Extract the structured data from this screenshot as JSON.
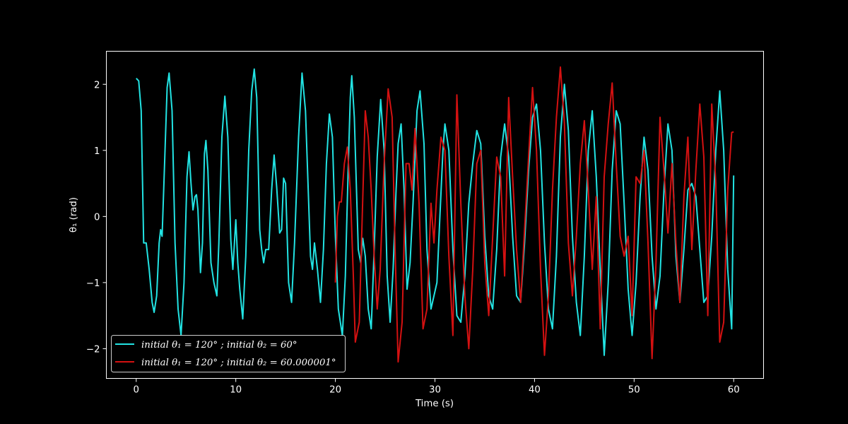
{
  "chart_data": {
    "type": "line",
    "title": "",
    "xlabel": "Time (s)",
    "ylabel": "θ₁ (rad)",
    "xlim": [
      -3,
      63
    ],
    "ylim": [
      -2.45,
      2.5
    ],
    "xticks": [
      0,
      10,
      20,
      30,
      40,
      50,
      60
    ],
    "yticks": [
      -2,
      -1,
      0,
      1,
      2
    ],
    "ytick_labels": [
      "−2",
      "−1",
      "0",
      "1",
      "2"
    ],
    "grid": false,
    "legend_position": "lower-left",
    "series": [
      {
        "name": "initial θ₁ = 120° ; initial θ₂ = 60°",
        "color": "#22e3e3",
        "points": [
          [
            0,
            2.09
          ],
          [
            0.25,
            2.05
          ],
          [
            0.5,
            1.6
          ],
          [
            0.75,
            -0.4
          ],
          [
            1.0,
            -0.4
          ],
          [
            1.3,
            -0.8
          ],
          [
            1.6,
            -1.3
          ],
          [
            1.8,
            -1.45
          ],
          [
            2.05,
            -1.2
          ],
          [
            2.3,
            -0.4
          ],
          [
            2.45,
            -0.2
          ],
          [
            2.6,
            -0.3
          ],
          [
            2.85,
            0.8
          ],
          [
            3.1,
            1.95
          ],
          [
            3.3,
            2.17
          ],
          [
            3.6,
            1.6
          ],
          [
            3.9,
            -0.4
          ],
          [
            4.2,
            -1.4
          ],
          [
            4.5,
            -1.8
          ],
          [
            4.8,
            -1.0
          ],
          [
            5.1,
            0.6
          ],
          [
            5.3,
            0.98
          ],
          [
            5.5,
            0.5
          ],
          [
            5.7,
            0.1
          ],
          [
            5.9,
            0.3
          ],
          [
            6.05,
            0.33
          ],
          [
            6.2,
            0.1
          ],
          [
            6.45,
            -0.85
          ],
          [
            6.65,
            -0.4
          ],
          [
            6.85,
            0.95
          ],
          [
            7.0,
            1.15
          ],
          [
            7.2,
            0.7
          ],
          [
            7.5,
            -0.7
          ],
          [
            7.8,
            -1.0
          ],
          [
            8.1,
            -1.2
          ],
          [
            8.3,
            -0.4
          ],
          [
            8.6,
            1.2
          ],
          [
            8.9,
            1.82
          ],
          [
            9.2,
            1.2
          ],
          [
            9.5,
            -0.35
          ],
          [
            9.7,
            -0.8
          ],
          [
            9.9,
            -0.3
          ],
          [
            10.0,
            -0.05
          ],
          [
            10.2,
            -0.7
          ],
          [
            10.4,
            -1.1
          ],
          [
            10.7,
            -1.55
          ],
          [
            11.0,
            -0.6
          ],
          [
            11.3,
            1.0
          ],
          [
            11.6,
            1.9
          ],
          [
            11.85,
            2.23
          ],
          [
            12.1,
            1.8
          ],
          [
            12.4,
            -0.2
          ],
          [
            12.6,
            -0.5
          ],
          [
            12.8,
            -0.7
          ],
          [
            13.0,
            -0.5
          ],
          [
            13.3,
            -0.5
          ],
          [
            13.6,
            0.4
          ],
          [
            13.85,
            0.93
          ],
          [
            14.1,
            0.45
          ],
          [
            14.4,
            -0.25
          ],
          [
            14.6,
            -0.2
          ],
          [
            14.8,
            0.58
          ],
          [
            15.0,
            0.5
          ],
          [
            15.3,
            -1.0
          ],
          [
            15.6,
            -1.3
          ],
          [
            15.9,
            -0.4
          ],
          [
            16.3,
            1.2
          ],
          [
            16.65,
            2.17
          ],
          [
            17.0,
            1.6
          ],
          [
            17.5,
            -0.6
          ],
          [
            17.7,
            -0.8
          ],
          [
            17.9,
            -0.4
          ],
          [
            18.2,
            -0.8
          ],
          [
            18.5,
            -1.3
          ],
          [
            18.8,
            -0.5
          ],
          [
            19.1,
            0.8
          ],
          [
            19.4,
            1.55
          ],
          [
            19.7,
            1.2
          ],
          [
            20.0,
            -0.3
          ],
          [
            20.3,
            -1.4
          ],
          [
            20.7,
            -1.8
          ],
          [
            21.0,
            -0.9
          ],
          [
            21.3,
            0.8
          ],
          [
            21.5,
            1.8
          ],
          [
            21.65,
            2.13
          ],
          [
            21.9,
            1.5
          ],
          [
            22.3,
            -0.5
          ],
          [
            22.55,
            -0.7
          ],
          [
            22.75,
            -0.33
          ],
          [
            23.0,
            -0.6
          ],
          [
            23.3,
            -1.4
          ],
          [
            23.6,
            -1.7
          ],
          [
            23.9,
            -0.5
          ],
          [
            24.2,
            0.9
          ],
          [
            24.55,
            1.77
          ],
          [
            24.9,
            1.0
          ],
          [
            25.2,
            -0.9
          ],
          [
            25.5,
            -1.6
          ],
          [
            25.8,
            -0.8
          ],
          [
            26.1,
            0.4
          ],
          [
            26.3,
            1.1
          ],
          [
            26.6,
            1.4
          ],
          [
            26.9,
            0.4
          ],
          [
            27.2,
            -1.1
          ],
          [
            27.5,
            -0.7
          ],
          [
            27.8,
            0.2
          ],
          [
            28.2,
            1.6
          ],
          [
            28.5,
            1.9
          ],
          [
            28.9,
            1.1
          ],
          [
            29.2,
            -0.5
          ],
          [
            29.6,
            -1.4
          ],
          [
            29.9,
            -1.2
          ],
          [
            30.2,
            -1.0
          ],
          [
            30.5,
            0.0
          ],
          [
            30.8,
            1.0
          ],
          [
            31.0,
            1.4
          ],
          [
            31.4,
            1.0
          ],
          [
            31.8,
            -0.5
          ],
          [
            32.2,
            -1.5
          ],
          [
            32.6,
            -1.6
          ],
          [
            33.0,
            -0.9
          ],
          [
            33.4,
            0.2
          ],
          [
            33.8,
            0.8
          ],
          [
            34.2,
            1.3
          ],
          [
            34.6,
            1.1
          ],
          [
            35.0,
            -0.3
          ],
          [
            35.4,
            -1.2
          ],
          [
            35.8,
            -1.4
          ],
          [
            36.2,
            -0.5
          ],
          [
            36.6,
            0.9
          ],
          [
            37.0,
            1.4
          ],
          [
            37.4,
            0.9
          ],
          [
            37.8,
            -0.3
          ],
          [
            38.2,
            -1.2
          ],
          [
            38.6,
            -1.3
          ],
          [
            39.0,
            -0.4
          ],
          [
            39.4,
            0.7
          ],
          [
            39.8,
            1.5
          ],
          [
            40.2,
            1.7
          ],
          [
            40.6,
            1.0
          ],
          [
            41.0,
            -0.4
          ],
          [
            41.4,
            -1.4
          ],
          [
            41.8,
            -1.7
          ],
          [
            42.2,
            -0.6
          ],
          [
            42.6,
            1.2
          ],
          [
            43.0,
            2.0
          ],
          [
            43.4,
            1.3
          ],
          [
            43.8,
            -0.3
          ],
          [
            44.2,
            -1.3
          ],
          [
            44.6,
            -1.8
          ],
          [
            45.0,
            -0.6
          ],
          [
            45.4,
            1.0
          ],
          [
            45.8,
            1.6
          ],
          [
            46.2,
            0.6
          ],
          [
            46.6,
            -0.8
          ],
          [
            47.0,
            -2.1
          ],
          [
            47.4,
            -1.0
          ],
          [
            47.8,
            0.7
          ],
          [
            48.2,
            1.6
          ],
          [
            48.6,
            1.4
          ],
          [
            49.0,
            0.2
          ],
          [
            49.4,
            -1.1
          ],
          [
            49.8,
            -1.8
          ],
          [
            50.2,
            -1.0
          ],
          [
            50.6,
            0.3
          ],
          [
            51.0,
            1.2
          ],
          [
            51.4,
            0.7
          ],
          [
            51.8,
            -0.6
          ],
          [
            52.2,
            -1.4
          ],
          [
            52.6,
            -0.9
          ],
          [
            53.0,
            0.4
          ],
          [
            53.4,
            1.4
          ],
          [
            53.8,
            1.0
          ],
          [
            54.2,
            -0.6
          ],
          [
            54.6,
            -1.3
          ],
          [
            55.0,
            -0.5
          ],
          [
            55.4,
            0.4
          ],
          [
            55.8,
            0.5
          ],
          [
            56.2,
            0.3
          ],
          [
            56.6,
            -0.5
          ],
          [
            57.0,
            -1.3
          ],
          [
            57.4,
            -1.2
          ],
          [
            57.8,
            -0.3
          ],
          [
            58.2,
            1.0
          ],
          [
            58.6,
            1.9
          ],
          [
            59.0,
            1.0
          ],
          [
            59.4,
            -0.8
          ],
          [
            59.8,
            -1.7
          ],
          [
            60.0,
            0.62
          ]
        ]
      },
      {
        "name": "initial θ₁ = 120° ; initial θ₂ = 60.000001°",
        "color": "#d41111",
        "points": [
          [
            20.0,
            -1.0
          ],
          [
            20.2,
            0.0
          ],
          [
            20.4,
            0.22
          ],
          [
            20.6,
            0.22
          ],
          [
            20.9,
            0.8
          ],
          [
            21.2,
            1.05
          ],
          [
            21.5,
            0.4
          ],
          [
            21.8,
            -0.9
          ],
          [
            22.0,
            -1.9
          ],
          [
            22.4,
            -1.6
          ],
          [
            22.7,
            0.0
          ],
          [
            23.0,
            1.6
          ],
          [
            23.3,
            1.2
          ],
          [
            23.6,
            0.4
          ],
          [
            23.9,
            -0.6
          ],
          [
            24.2,
            -1.4
          ],
          [
            24.5,
            -0.8
          ],
          [
            24.9,
            0.8
          ],
          [
            25.3,
            1.93
          ],
          [
            25.7,
            1.5
          ],
          [
            26.0,
            -0.5
          ],
          [
            26.3,
            -2.2
          ],
          [
            26.7,
            -1.6
          ],
          [
            27.1,
            0.8
          ],
          [
            27.4,
            0.8
          ],
          [
            27.7,
            0.4
          ],
          [
            28.0,
            1.33
          ],
          [
            28.4,
            0.2
          ],
          [
            28.8,
            -1.7
          ],
          [
            29.2,
            -1.4
          ],
          [
            29.6,
            0.2
          ],
          [
            29.9,
            -0.4
          ],
          [
            30.2,
            0.4
          ],
          [
            30.6,
            1.2
          ],
          [
            31.0,
            1.0
          ],
          [
            31.4,
            -0.6
          ],
          [
            31.8,
            -1.8
          ],
          [
            32.2,
            1.84
          ],
          [
            32.6,
            0.2
          ],
          [
            33.0,
            -1.2
          ],
          [
            33.4,
            -2.0
          ],
          [
            33.8,
            -0.8
          ],
          [
            34.2,
            0.8
          ],
          [
            34.6,
            1.0
          ],
          [
            35.0,
            -0.7
          ],
          [
            35.4,
            -1.5
          ],
          [
            35.8,
            -0.3
          ],
          [
            36.2,
            0.9
          ],
          [
            36.6,
            0.6
          ],
          [
            37.0,
            -0.9
          ],
          [
            37.4,
            1.8
          ],
          [
            37.8,
            0.6
          ],
          [
            38.2,
            -0.5
          ],
          [
            38.6,
            -1.3
          ],
          [
            39.0,
            -0.2
          ],
          [
            39.4,
            0.9
          ],
          [
            39.8,
            1.95
          ],
          [
            40.2,
            1.0
          ],
          [
            40.6,
            -0.8
          ],
          [
            41.0,
            -2.1
          ],
          [
            41.4,
            -1.2
          ],
          [
            41.8,
            0.4
          ],
          [
            42.2,
            1.5
          ],
          [
            42.6,
            2.26
          ],
          [
            43.0,
            1.4
          ],
          [
            43.4,
            -0.4
          ],
          [
            43.8,
            -1.2
          ],
          [
            44.2,
            -0.3
          ],
          [
            44.6,
            0.8
          ],
          [
            45.0,
            1.45
          ],
          [
            45.4,
            0.4
          ],
          [
            45.8,
            -0.8
          ],
          [
            46.2,
            0.3
          ],
          [
            46.6,
            -1.7
          ],
          [
            47.0,
            0.6
          ],
          [
            47.4,
            1.4
          ],
          [
            47.8,
            2.02
          ],
          [
            48.2,
            0.8
          ],
          [
            48.6,
            -0.3
          ],
          [
            49.0,
            -0.6
          ],
          [
            49.4,
            -0.3
          ],
          [
            49.8,
            -1.5
          ],
          [
            50.2,
            0.6
          ],
          [
            50.6,
            0.5
          ],
          [
            51.0,
            1.0
          ],
          [
            51.4,
            -0.4
          ],
          [
            51.8,
            -2.15
          ],
          [
            52.2,
            -0.7
          ],
          [
            52.6,
            1.5
          ],
          [
            53.0,
            0.7
          ],
          [
            53.4,
            -0.25
          ],
          [
            53.8,
            0.8
          ],
          [
            54.2,
            -0.4
          ],
          [
            54.6,
            -1.3
          ],
          [
            55.0,
            0.3
          ],
          [
            55.4,
            1.2
          ],
          [
            55.8,
            -0.5
          ],
          [
            56.2,
            0.7
          ],
          [
            56.6,
            1.7
          ],
          [
            57.0,
            0.9
          ],
          [
            57.4,
            -1.5
          ],
          [
            57.8,
            1.7
          ],
          [
            58.2,
            0.5
          ],
          [
            58.6,
            -1.9
          ],
          [
            59.0,
            -1.6
          ],
          [
            59.4,
            0.4
          ],
          [
            59.8,
            1.27
          ],
          [
            60.0,
            1.28
          ]
        ]
      }
    ]
  }
}
